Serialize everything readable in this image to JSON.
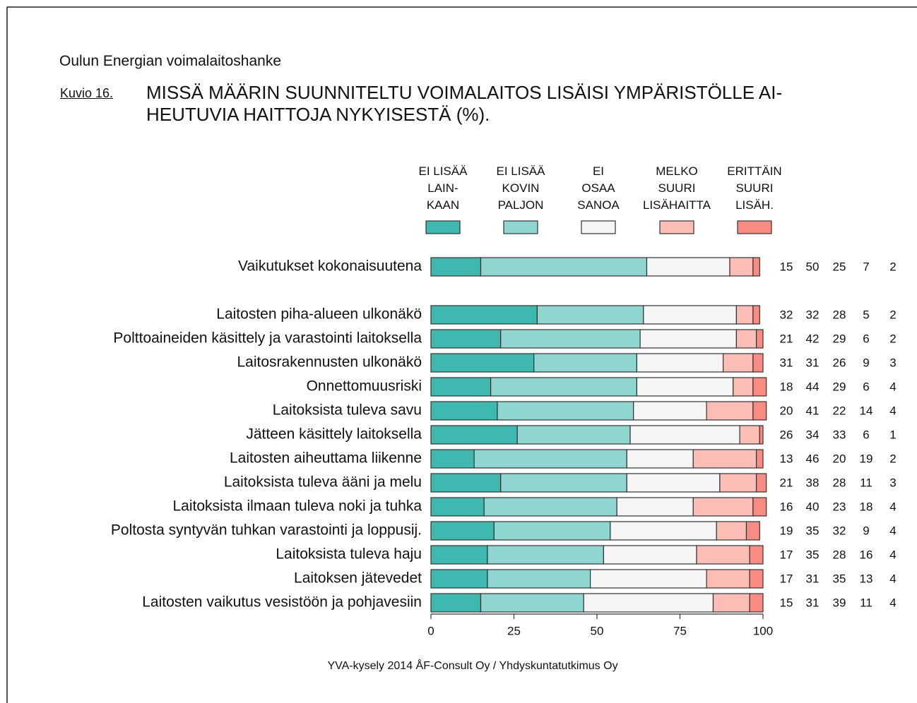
{
  "chart_data": {
    "type": "stacked-barh",
    "header": "Oulun Energian voimalaitoshanke",
    "figure_label": "Kuvio 16.",
    "title": "MISSÄ MÄÄRIN SUUNNITELTU VOIMALAITOS LISÄISI YMPÄRISTÖLLE AI-\nHEUTUVIA HAITTOJA NYKYISESTÄ (%).",
    "source": "YVA-kysely 2014 ÅF-Consult Oy / Yhdyskuntatutkimus Oy",
    "categories": [
      "Vaikutukset kokonaisuutena",
      "Laitosten piha-alueen ulkonäkö",
      "Polttoaineiden käsittely ja varastointi laitoksella",
      "Laitosrakennusten ulkonäkö",
      "Onnettomuusriski",
      "Laitoksista tuleva savu",
      "Jätteen käsittely laitoksella",
      "Laitosten aiheuttama liikenne",
      "Laitoksista tuleva ääni ja melu",
      "Laitoksista ilmaan tuleva noki ja tuhka",
      "Poltosta syntyvän tuhkan varastointi ja loppusij.",
      "Laitoksista tuleva haju",
      "Laitoksen jätevedet",
      "Laitosten vaikutus vesistöön ja pohjavesiin"
    ],
    "series": [
      {
        "name": "EI LISÄÄ\nLAIN-\nKAAN",
        "color": "#3fb8b0",
        "values": [
          15,
          32,
          21,
          31,
          18,
          20,
          26,
          13,
          21,
          16,
          19,
          17,
          17,
          15
        ]
      },
      {
        "name": "EI LISÄÄ\nKOVIN\nPALJON",
        "color": "#8fd6d0",
        "values": [
          50,
          32,
          42,
          31,
          44,
          41,
          34,
          46,
          38,
          40,
          35,
          35,
          31,
          31
        ]
      },
      {
        "name": "EI\nOSAA\nSANOA",
        "color": "#f5f5f5",
        "values": [
          25,
          28,
          29,
          26,
          29,
          22,
          33,
          20,
          28,
          23,
          32,
          28,
          35,
          39
        ]
      },
      {
        "name": "MELKO\nSUURI\nLISÄHAITTA",
        "color": "#fbbdb5",
        "values": [
          7,
          5,
          6,
          9,
          6,
          14,
          6,
          19,
          11,
          18,
          9,
          16,
          13,
          11
        ]
      },
      {
        "name": "ERITTÄIN\nSUURI\nLISÄH.",
        "color": "#f88b82",
        "values": [
          2,
          2,
          2,
          3,
          4,
          4,
          1,
          2,
          3,
          4,
          4,
          4,
          4,
          4
        ]
      }
    ],
    "xlim": [
      0,
      100
    ],
    "xticks": [
      0,
      25,
      50,
      75,
      100
    ]
  }
}
